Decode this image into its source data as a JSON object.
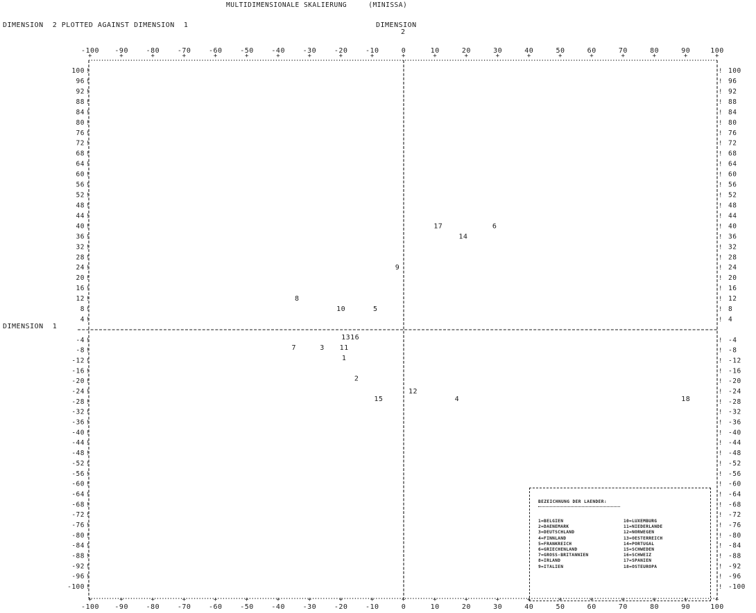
{
  "header": {
    "title": "MULTIDIMENSIONALE SKALIERUNG     (MINISSA)",
    "subtitle": "DIMENSION  2 PLOTTED AGAINST DIMENSION  1",
    "axis2_label_word": "DIMENSION",
    "axis2_label_num": "2",
    "axis1_label": "DIMENSION  1"
  },
  "chart_data": {
    "type": "scatter",
    "title": "MULTIDIMENSIONALE SKALIERUNG     (MINISSA)",
    "xlabel": "DIMENSION  1",
    "ylabel": "DIMENSION  2",
    "xlim": [
      -100,
      100
    ],
    "ylim": [
      -100,
      100
    ],
    "x_ticks": [
      "-100",
      "-90",
      "-80",
      "-70",
      "-60",
      "-50",
      "-40",
      "-30",
      "-20",
      "-10",
      "0",
      "10",
      "20",
      "30",
      "40",
      "50",
      "60",
      "70",
      "80",
      "90",
      "100"
    ],
    "y_ticks": [
      "100",
      "96",
      "92",
      "88",
      "84",
      "80",
      "76",
      "72",
      "68",
      "64",
      "60",
      "56",
      "52",
      "48",
      "44",
      "40",
      "36",
      "32",
      "28",
      "24",
      "20",
      "16",
      "12",
      "8",
      "4",
      "-4",
      "-8",
      "-12",
      "-16",
      "-20",
      "-24",
      "-28",
      "-32",
      "-36",
      "-40",
      "-44",
      "-48",
      "-52",
      "-56",
      "-60",
      "-64",
      "-68",
      "-72",
      "-76",
      "-80",
      "-84",
      "-88",
      "-92",
      "-96",
      "-100"
    ],
    "points": [
      {
        "label": "17",
        "x": 11,
        "y": 40
      },
      {
        "label": "6",
        "x": 29,
        "y": 40
      },
      {
        "label": "14",
        "x": 19,
        "y": 36
      },
      {
        "label": "9",
        "x": -2,
        "y": 24
      },
      {
        "label": "8",
        "x": -34,
        "y": 12
      },
      {
        "label": "10",
        "x": -20,
        "y": 8
      },
      {
        "label": "5",
        "x": -9,
        "y": 8
      },
      {
        "label": "1316",
        "x": -17,
        "y": -3
      },
      {
        "label": "7",
        "x": -35,
        "y": -7
      },
      {
        "label": "3",
        "x": -26,
        "y": -7
      },
      {
        "label": "11",
        "x": -19,
        "y": -7
      },
      {
        "label": "1",
        "x": -19,
        "y": -11
      },
      {
        "label": "2",
        "x": -15,
        "y": -19
      },
      {
        "label": "12",
        "x": 3,
        "y": -24
      },
      {
        "label": "15",
        "x": -8,
        "y": -27
      },
      {
        "label": "4",
        "x": 17,
        "y": -27
      },
      {
        "label": "18",
        "x": 90,
        "y": -27
      }
    ],
    "grid": false
  },
  "legend": {
    "title": "BEZEICHNUNG DER LAENDER:",
    "col1": [
      "1=BELGIEN",
      "2=DAENEMARK",
      "3=DEUTSCHLAND",
      "4=FINNLAND",
      "5=FRANKREICH",
      "6=GRIECHENLAND",
      "7=GROSS-BRITANNIEN",
      "8=IRLAND",
      "9=ITALIEN"
    ],
    "col2": [
      "10=LUXEMBURG",
      "11=NIEDERLANDE",
      "12=NORWEGEN",
      "13=OESTERREICH",
      "14=PORTUGAL",
      "15=SCHWEDEN",
      "16=SCHWEIZ",
      "17=SPANIEN",
      "18=OSTEUROPA"
    ]
  }
}
